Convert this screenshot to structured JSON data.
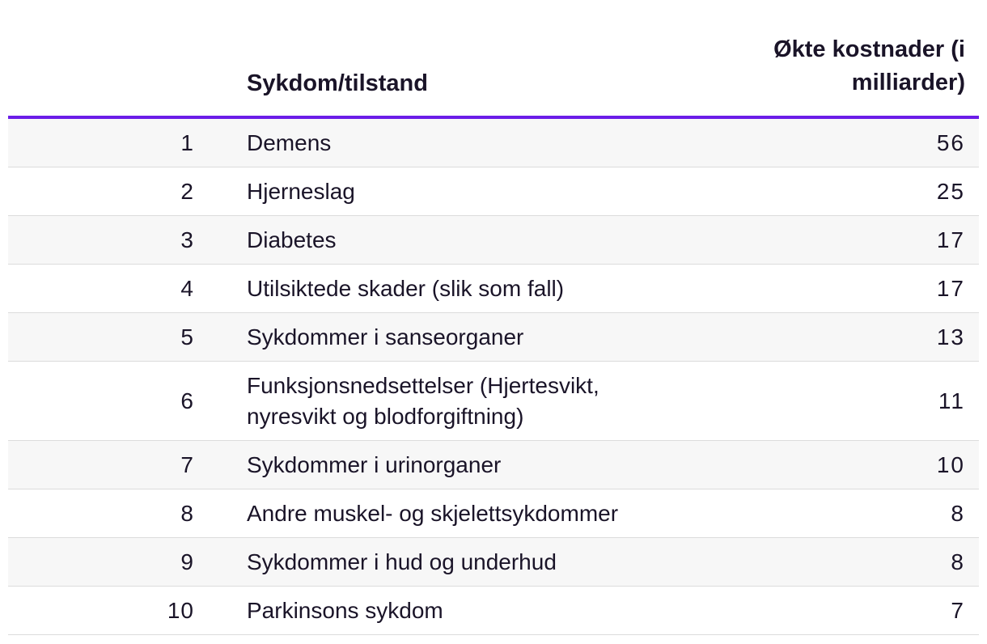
{
  "chart_data": {
    "type": "table",
    "columns": [
      "",
      "Sykdom/tilstand",
      "Økte kostnader (i milliarder)"
    ],
    "rows": [
      {
        "rank": "1",
        "name": "Demens",
        "cost": "56"
      },
      {
        "rank": "2",
        "name": "Hjerneslag",
        "cost": "25"
      },
      {
        "rank": "3",
        "name": "Diabetes",
        "cost": "17"
      },
      {
        "rank": "4",
        "name": "Utilsiktede skader (slik som fall)",
        "cost": "17"
      },
      {
        "rank": "5",
        "name": "Sykdommer i sanseorganer",
        "cost": "13"
      },
      {
        "rank": "6",
        "name": "Funksjonsnedsettelser (Hjertesvikt, nyresvikt og blodforgiftning)",
        "cost": "11"
      },
      {
        "rank": "7",
        "name": "Sykdommer i urinorganer",
        "cost": "10"
      },
      {
        "rank": "8",
        "name": "Andre muskel- og skjelettsykdommer",
        "cost": "8"
      },
      {
        "rank": "9",
        "name": "Sykdommer i hud og underhud",
        "cost": "8"
      },
      {
        "rank": "10",
        "name": "Parkinsons sykdom",
        "cost": "7"
      }
    ],
    "header_rule_color": "#6b1de8",
    "stripe_color": "#f7f7f7"
  }
}
